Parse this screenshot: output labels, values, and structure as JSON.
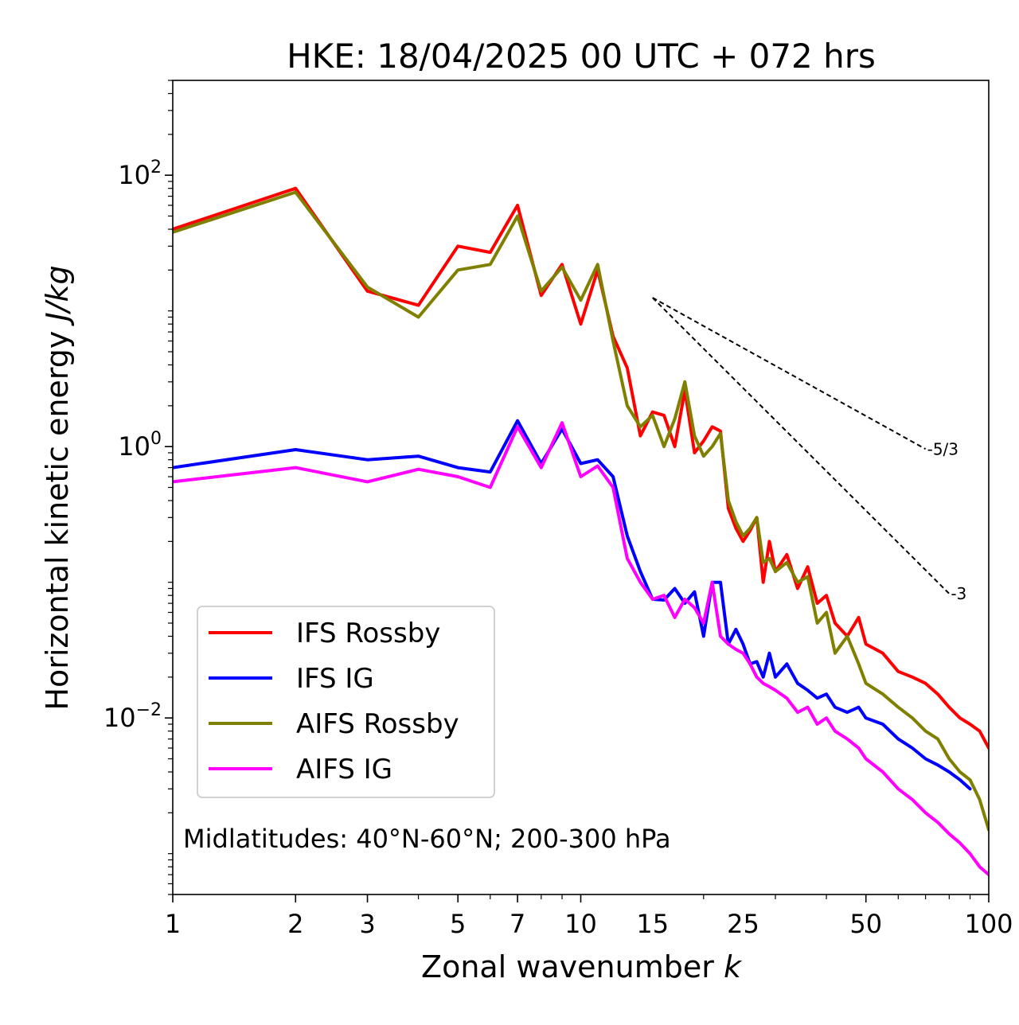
{
  "chart_data": {
    "type": "line",
    "title": "HKE: 18/04/2025 00 UTC + 072 hrs",
    "xlabel": "Zonal wavenumber k",
    "ylabel": "Horizontal kinetic energy J/kg",
    "xscale": "log",
    "yscale": "log",
    "xlim": [
      1,
      100
    ],
    "ylim": [
      0.0005,
      500
    ],
    "grid": false,
    "legend_position": "lower-left",
    "x_ticks": [
      1,
      2,
      3,
      5,
      7,
      10,
      15,
      25,
      50,
      100
    ],
    "x_tick_labels": [
      "1",
      "2",
      "3",
      "5",
      "7",
      "10",
      "15",
      "25",
      "50",
      "100"
    ],
    "y_ticks": [
      0.01,
      1,
      100
    ],
    "y_tick_labels": [
      "10^-2",
      "10^0",
      "10^2"
    ],
    "annotation": "Midlatitudes: 40°N-60°N; 200-300 hPa",
    "reference_slopes": [
      {
        "label": "-5/3",
        "slope": -1.6667,
        "x": [
          15,
          70
        ],
        "y_start": 12.5
      },
      {
        "label": "-3",
        "slope": -3,
        "x": [
          15,
          80
        ],
        "y_start": 12.5
      }
    ],
    "series": [
      {
        "name": "IFS Rossby",
        "color": "#ff0000",
        "x": [
          1,
          2,
          3,
          4,
          5,
          6,
          7,
          8,
          9,
          10,
          11,
          12,
          13,
          14,
          15,
          16,
          17,
          18,
          19,
          20,
          21,
          22,
          23,
          24,
          25,
          26,
          27,
          28,
          29,
          30,
          32,
          34,
          36,
          38,
          40,
          42,
          45,
          48,
          50,
          55,
          60,
          65,
          70,
          75,
          80,
          85,
          90,
          95,
          100
        ],
        "y": [
          40,
          80,
          14,
          11,
          30,
          27,
          60,
          13,
          22,
          8,
          20,
          6.5,
          3.8,
          1.2,
          1.8,
          1.7,
          1.0,
          2.6,
          0.9,
          1.1,
          1.4,
          1.3,
          0.35,
          0.25,
          0.2,
          0.24,
          0.3,
          0.1,
          0.2,
          0.12,
          0.16,
          0.09,
          0.13,
          0.07,
          0.08,
          0.05,
          0.04,
          0.055,
          0.035,
          0.03,
          0.022,
          0.02,
          0.018,
          0.015,
          0.012,
          0.01,
          0.009,
          0.008,
          0.006
        ]
      },
      {
        "name": "IFS IG",
        "color": "#0000ff",
        "x": [
          1,
          2,
          3,
          4,
          5,
          6,
          7,
          8,
          9,
          10,
          11,
          12,
          13,
          14,
          15,
          16,
          17,
          18,
          19,
          20,
          21,
          22,
          23,
          24,
          25,
          26,
          27,
          28,
          29,
          30,
          32,
          34,
          36,
          38,
          40,
          42,
          45,
          48,
          50,
          55,
          60,
          65,
          70,
          75,
          80,
          85,
          90
        ],
        "y": [
          0.7,
          0.95,
          0.8,
          0.85,
          0.7,
          0.65,
          1.55,
          0.75,
          1.35,
          0.75,
          0.8,
          0.6,
          0.22,
          0.12,
          0.075,
          0.074,
          0.09,
          0.07,
          0.085,
          0.04,
          0.1,
          0.1,
          0.035,
          0.045,
          0.035,
          0.025,
          0.026,
          0.02,
          0.03,
          0.02,
          0.025,
          0.018,
          0.016,
          0.014,
          0.015,
          0.012,
          0.011,
          0.012,
          0.01,
          0.009,
          0.007,
          0.006,
          0.005,
          0.0045,
          0.004,
          0.0035,
          0.003
        ]
      },
      {
        "name": "AIFS Rossby",
        "color": "#808000",
        "x": [
          1,
          2,
          3,
          4,
          5,
          6,
          7,
          8,
          9,
          10,
          11,
          12,
          13,
          14,
          15,
          16,
          17,
          18,
          19,
          20,
          21,
          22,
          23,
          24,
          25,
          26,
          27,
          28,
          29,
          30,
          32,
          34,
          36,
          38,
          40,
          42,
          45,
          48,
          50,
          55,
          60,
          65,
          70,
          75,
          80,
          85,
          90,
          95,
          100
        ],
        "y": [
          38,
          75,
          15,
          9,
          20,
          22,
          50,
          14,
          21,
          12,
          22,
          6,
          2,
          1.4,
          1.7,
          1.0,
          1.6,
          3.0,
          1.2,
          0.85,
          1.0,
          1.25,
          0.4,
          0.28,
          0.22,
          0.25,
          0.3,
          0.14,
          0.15,
          0.12,
          0.14,
          0.1,
          0.11,
          0.05,
          0.06,
          0.03,
          0.04,
          0.025,
          0.018,
          0.015,
          0.012,
          0.01,
          0.008,
          0.007,
          0.005,
          0.004,
          0.0035,
          0.0025,
          0.0015
        ]
      },
      {
        "name": "AIFS IG",
        "color": "#ff00ff",
        "x": [
          1,
          2,
          3,
          4,
          5,
          6,
          7,
          8,
          9,
          10,
          11,
          12,
          13,
          14,
          15,
          16,
          17,
          18,
          19,
          20,
          21,
          22,
          23,
          24,
          25,
          26,
          27,
          28,
          29,
          30,
          32,
          34,
          36,
          38,
          40,
          42,
          45,
          48,
          50,
          55,
          60,
          65,
          70,
          75,
          80,
          85,
          90,
          95,
          100
        ],
        "y": [
          0.55,
          0.7,
          0.55,
          0.68,
          0.6,
          0.5,
          1.4,
          0.7,
          1.5,
          0.6,
          0.72,
          0.5,
          0.15,
          0.1,
          0.075,
          0.08,
          0.055,
          0.075,
          0.065,
          0.05,
          0.1,
          0.04,
          0.035,
          0.032,
          0.03,
          0.025,
          0.02,
          0.018,
          0.017,
          0.016,
          0.014,
          0.011,
          0.012,
          0.009,
          0.01,
          0.008,
          0.007,
          0.006,
          0.005,
          0.004,
          0.003,
          0.0025,
          0.002,
          0.0017,
          0.0014,
          0.0012,
          0.001,
          0.0008,
          0.0007
        ]
      }
    ]
  }
}
